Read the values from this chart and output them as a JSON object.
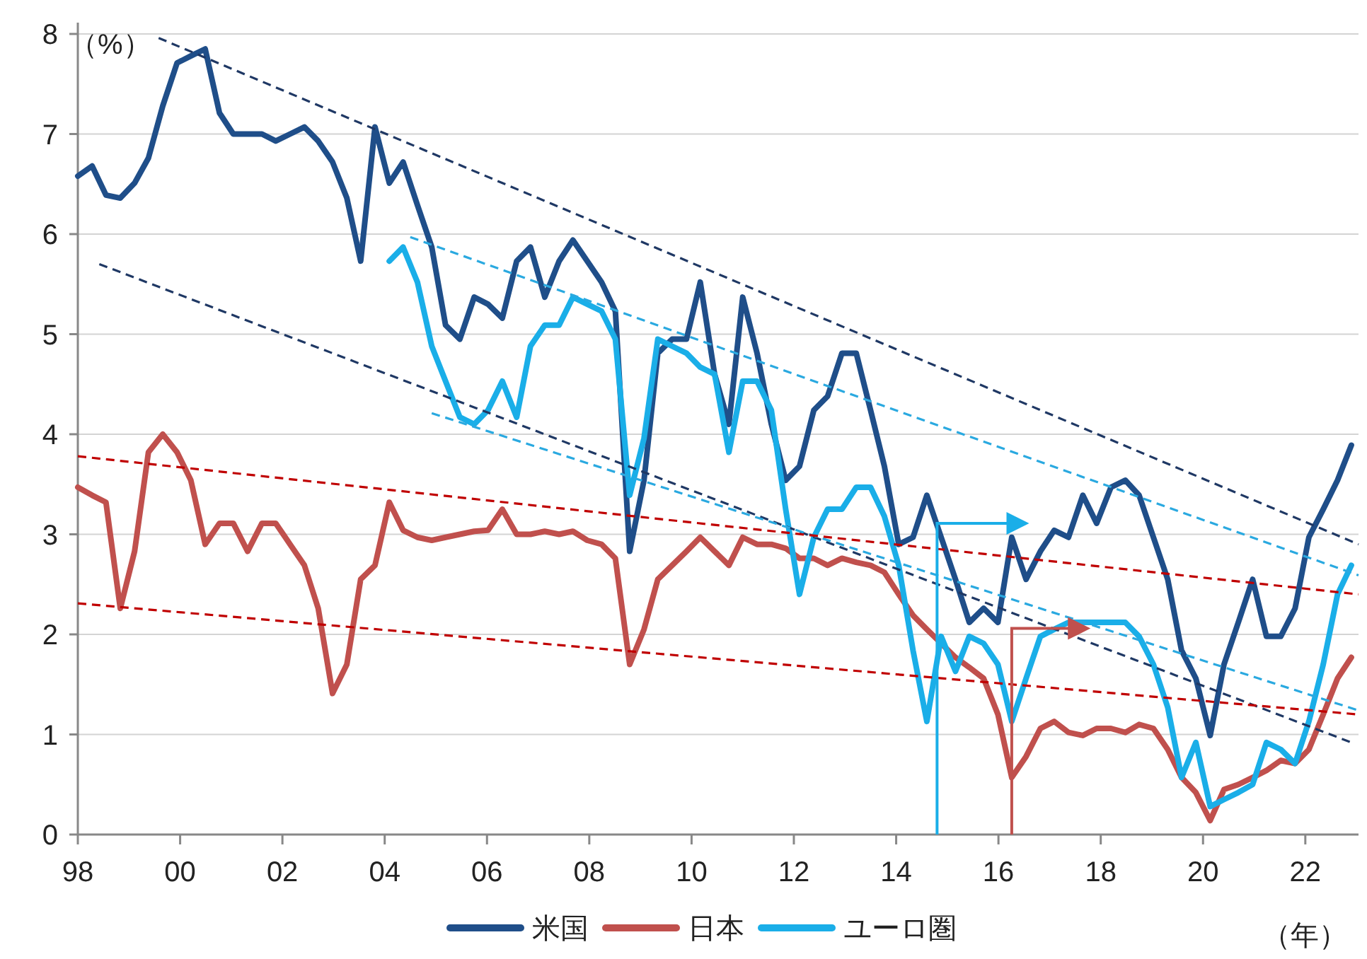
{
  "chart_data": {
    "type": "line",
    "xlabel": "（年）",
    "ylabel": "（%）",
    "xlim": [
      1998,
      2023.04
    ],
    "ylim": [
      0,
      8
    ],
    "xticks": [
      {
        "value": 1998,
        "label": "98"
      },
      {
        "value": 2000,
        "label": "00"
      },
      {
        "value": 2002,
        "label": "02"
      },
      {
        "value": 2004,
        "label": "04"
      },
      {
        "value": 2006,
        "label": "06"
      },
      {
        "value": 2008,
        "label": "08"
      },
      {
        "value": 2010,
        "label": "10"
      },
      {
        "value": 2012,
        "label": "12"
      },
      {
        "value": 2014,
        "label": "14"
      },
      {
        "value": 2016,
        "label": "16"
      },
      {
        "value": 2018,
        "label": "18"
      },
      {
        "value": 2020,
        "label": "20"
      },
      {
        "value": 2022,
        "label": "22"
      }
    ],
    "yticks": [
      0,
      1,
      2,
      3,
      4,
      5,
      6,
      7,
      8
    ],
    "grid": "y",
    "legend": "bottom",
    "line_style": "solid",
    "x": [
      1998.0,
      1998.28,
      1998.55,
      1998.83,
      1999.11,
      1999.38,
      1999.66,
      1999.94,
      2000.21,
      2000.49,
      2000.77,
      2001.04,
      2001.32,
      2001.6,
      2001.87,
      2002.15,
      2002.43,
      2002.7,
      2002.98,
      2003.26,
      2003.53,
      2003.81,
      2004.09,
      2004.36,
      2004.64,
      2004.92,
      2005.19,
      2005.47,
      2005.75,
      2006.02,
      2006.3,
      2006.58,
      2006.85,
      2007.13,
      2007.41,
      2007.68,
      2007.96,
      2008.24,
      2008.51,
      2008.79,
      2009.07,
      2009.34,
      2009.62,
      2009.9,
      2010.17,
      2010.45,
      2010.73,
      2011.0,
      2011.28,
      2011.56,
      2011.84,
      2012.11,
      2012.39,
      2012.66,
      2012.94,
      2013.22,
      2013.5,
      2013.77,
      2014.05,
      2014.33,
      2014.6,
      2014.88,
      2015.16,
      2015.43,
      2015.71,
      2015.99,
      2016.26,
      2016.54,
      2016.82,
      2017.09,
      2017.37,
      2017.65,
      2017.92,
      2018.2,
      2018.48,
      2018.75,
      2019.03,
      2019.31,
      2019.58,
      2019.86,
      2020.14,
      2020.41,
      2020.69,
      2020.97,
      2021.24,
      2021.52,
      2021.8,
      2022.07,
      2022.35,
      2022.63,
      2022.9
    ],
    "series": [
      {
        "name": "米国",
        "color": "#1f4e89",
        "values": [
          6.58,
          6.68,
          6.39,
          6.36,
          6.51,
          6.76,
          7.28,
          7.71,
          7.78,
          7.85,
          7.21,
          7.0,
          7.0,
          7.0,
          6.93,
          7.0,
          7.07,
          6.93,
          6.72,
          6.36,
          5.73,
          7.07,
          6.51,
          6.72,
          6.29,
          5.87,
          5.09,
          4.95,
          5.37,
          5.3,
          5.16,
          5.73,
          5.87,
          5.37,
          5.73,
          5.94,
          5.73,
          5.52,
          5.23,
          2.83,
          3.54,
          4.81,
          4.95,
          4.95,
          5.52,
          4.6,
          4.1,
          5.37,
          4.81,
          4.1,
          3.54,
          3.68,
          4.24,
          4.38,
          4.81,
          4.81,
          4.24,
          3.68,
          2.9,
          2.97,
          3.39,
          2.97,
          2.55,
          2.12,
          2.26,
          2.12,
          2.97,
          2.55,
          2.83,
          3.04,
          2.97,
          3.39,
          3.11,
          3.47,
          3.54,
          3.39,
          2.97,
          2.55,
          1.84,
          1.56,
          0.99,
          1.7,
          2.12,
          2.55,
          1.98,
          1.98,
          2.26,
          2.97,
          3.25,
          3.54,
          3.89
        ]
      },
      {
        "name": "日本",
        "color": "#c0504d",
        "values": [
          3.47,
          3.39,
          3.32,
          2.26,
          2.83,
          3.82,
          4.0,
          3.82,
          3.54,
          2.9,
          3.11,
          3.11,
          2.83,
          3.11,
          3.11,
          2.9,
          2.69,
          2.26,
          1.41,
          1.7,
          2.55,
          2.69,
          3.32,
          3.04,
          2.97,
          2.94,
          2.97,
          3.0,
          3.03,
          3.04,
          3.25,
          3.0,
          3.0,
          3.03,
          3.0,
          3.03,
          2.94,
          2.9,
          2.76,
          1.7,
          2.05,
          2.55,
          2.69,
          2.83,
          2.97,
          2.83,
          2.69,
          2.97,
          2.9,
          2.9,
          2.86,
          2.76,
          2.76,
          2.69,
          2.76,
          2.72,
          2.69,
          2.62,
          2.4,
          2.19,
          2.05,
          1.91,
          1.77,
          1.67,
          1.56,
          1.2,
          0.57,
          0.78,
          1.06,
          1.13,
          1.02,
          0.99,
          1.06,
          1.06,
          1.02,
          1.1,
          1.06,
          0.85,
          0.57,
          0.42,
          0.14,
          0.45,
          0.5,
          0.57,
          0.64,
          0.74,
          0.71,
          0.85,
          1.2,
          1.56,
          1.77
        ]
      },
      {
        "name": "ユーロ圏",
        "color": "#1aaee8",
        "values": [
          null,
          null,
          null,
          null,
          null,
          null,
          null,
          null,
          null,
          null,
          null,
          null,
          null,
          null,
          null,
          null,
          null,
          null,
          null,
          null,
          null,
          null,
          5.73,
          5.87,
          5.52,
          4.88,
          4.53,
          4.17,
          4.1,
          4.24,
          4.53,
          4.17,
          4.88,
          5.09,
          5.09,
          5.37,
          5.3,
          5.23,
          4.95,
          3.39,
          3.96,
          4.95,
          4.88,
          4.81,
          4.67,
          4.6,
          3.82,
          4.53,
          4.53,
          4.24,
          3.25,
          2.4,
          2.97,
          3.25,
          3.25,
          3.47,
          3.47,
          3.18,
          2.69,
          1.84,
          1.13,
          1.98,
          1.63,
          1.98,
          1.91,
          1.7,
          1.13,
          1.56,
          1.98,
          2.05,
          2.12,
          2.12,
          2.12,
          2.12,
          2.12,
          1.98,
          1.7,
          1.27,
          0.57,
          0.92,
          0.28,
          0.35,
          0.42,
          0.5,
          0.92,
          0.85,
          0.71,
          1.13,
          1.7,
          2.4,
          2.69
        ]
      },
      {
        "type": "line",
        "line_style": "dashed",
        "color": "#1f3864",
        "x": [
          1999.58,
          2023.04
        ],
        "values": [
          7.96,
          2.9
        ]
      },
      {
        "type": "line",
        "line_style": "dashed",
        "color": "#1f3864",
        "x": [
          1998.42,
          2022.9
        ],
        "values": [
          5.7,
          0.92
        ]
      },
      {
        "type": "line",
        "line_style": "dashed",
        "color": "#2aa9e0",
        "x": [
          2004.5,
          2023.04
        ],
        "values": [
          5.97,
          2.59
        ]
      },
      {
        "type": "line",
        "line_style": "dashed",
        "color": "#2aa9e0",
        "x": [
          2004.92,
          2023.04
        ],
        "values": [
          4.21,
          1.24
        ]
      },
      {
        "type": "line",
        "line_style": "dashed",
        "color": "#c00000",
        "x": [
          1998,
          2023.04
        ],
        "values": [
          3.78,
          2.4
        ]
      },
      {
        "type": "line",
        "line_style": "dashed",
        "color": "#c00000",
        "x": [
          1998,
          2023.04
        ],
        "values": [
          2.31,
          1.2
        ]
      }
    ]
  }
}
